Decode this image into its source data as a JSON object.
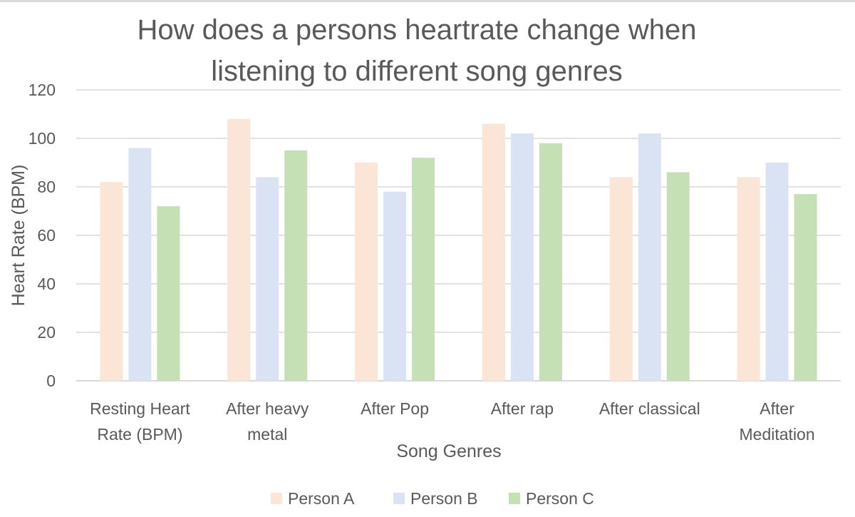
{
  "chart_data": {
    "type": "bar",
    "title_lines": [
      "How does a persons heartrate change when",
      "listening to different song genres"
    ],
    "xlabel": "Song Genres",
    "ylabel": "Heart Rate (BPM)",
    "ylim": [
      0,
      120
    ],
    "yticks": [
      0,
      20,
      40,
      60,
      80,
      100,
      120
    ],
    "grid": true,
    "legend_position": "bottom",
    "categories": [
      [
        "Resting Heart",
        "Rate (BPM)"
      ],
      [
        "After heavy",
        "metal"
      ],
      [
        "After Pop"
      ],
      [
        "After rap"
      ],
      [
        "After classical"
      ],
      [
        "After",
        "Meditation"
      ]
    ],
    "series": [
      {
        "name": "Person A",
        "color": "#fbe5d6",
        "values": [
          82,
          108,
          90,
          106,
          84,
          84
        ]
      },
      {
        "name": "Person B",
        "color": "#dae3f3",
        "values": [
          96,
          84,
          78,
          102,
          102,
          90
        ]
      },
      {
        "name": "Person C",
        "color": "#c5e0b4",
        "values": [
          72,
          95,
          92,
          98,
          86,
          77
        ]
      }
    ]
  }
}
